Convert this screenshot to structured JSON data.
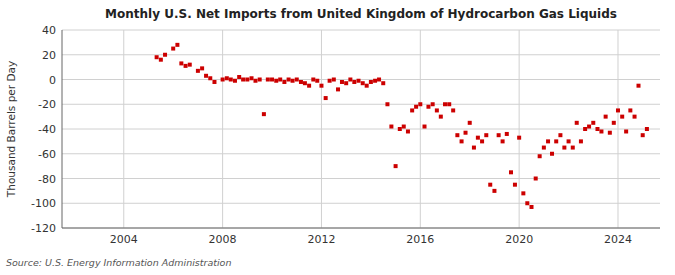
{
  "chart_data": {
    "type": "scatter",
    "title": "Monthly U.S. Net Imports from United Kingdom of Hydrocarbon Gas Liquids",
    "ylabel": "Thousand Barrels per Day",
    "source": "Source: U.S. Energy Information Administration",
    "x": [
      2005.33,
      2005.5,
      2005.67,
      2006,
      2006.17,
      2006.33,
      2006.5,
      2006.67,
      2007,
      2007.17,
      2007.33,
      2007.5,
      2007.67,
      2008,
      2008.17,
      2008.33,
      2008.5,
      2008.67,
      2008.83,
      2009,
      2009.17,
      2009.33,
      2009.5,
      2009.67,
      2009.83,
      2010,
      2010.17,
      2010.33,
      2010.5,
      2010.67,
      2010.83,
      2011,
      2011.17,
      2011.33,
      2011.5,
      2011.67,
      2011.83,
      2012,
      2012.17,
      2012.33,
      2012.5,
      2012.67,
      2012.83,
      2013,
      2013.17,
      2013.33,
      2013.5,
      2013.67,
      2013.83,
      2014,
      2014.17,
      2014.33,
      2014.5,
      2014.67,
      2014.83,
      2015,
      2015.17,
      2015.33,
      2015.5,
      2015.67,
      2015.83,
      2016,
      2016.17,
      2016.33,
      2016.5,
      2016.67,
      2016.83,
      2017,
      2017.17,
      2017.33,
      2017.5,
      2017.67,
      2017.83,
      2018,
      2018.17,
      2018.33,
      2018.5,
      2018.67,
      2018.83,
      2019,
      2019.17,
      2019.33,
      2019.5,
      2019.67,
      2019.83,
      2020,
      2020.17,
      2020.33,
      2020.5,
      2020.67,
      2020.83,
      2021,
      2021.17,
      2021.33,
      2021.5,
      2021.67,
      2021.83,
      2022,
      2022.17,
      2022.33,
      2022.5,
      2022.67,
      2022.83,
      2023,
      2023.17,
      2023.33,
      2023.5,
      2023.67,
      2023.83,
      2024,
      2024.17,
      2024.33,
      2024.5,
      2024.67,
      2024.83,
      2025,
      2025.17
    ],
    "values": [
      18,
      16,
      20,
      25,
      28,
      13,
      11,
      12,
      7,
      9,
      3,
      1,
      -2,
      0,
      1,
      0,
      -1,
      2,
      0,
      0,
      1,
      -1,
      0,
      -28,
      0,
      0,
      -1,
      0,
      -2,
      0,
      -1,
      0,
      -2,
      -3,
      -5,
      0,
      -1,
      -5,
      -15,
      -1,
      0,
      -8,
      -2,
      -3,
      0,
      -2,
      -1,
      -3,
      -5,
      -2,
      -1,
      0,
      -3,
      -20,
      -38,
      -70,
      -40,
      -38,
      -42,
      -25,
      -22,
      -20,
      -38,
      -22,
      -20,
      -25,
      -30,
      -20,
      -20,
      -25,
      -45,
      -50,
      -43,
      -35,
      -55,
      -47,
      -50,
      -45,
      -85,
      -90,
      -45,
      -50,
      -44,
      -75,
      -85,
      -47,
      -92,
      -100,
      -103,
      -80,
      -62,
      -55,
      -50,
      -60,
      -50,
      -45,
      -55,
      -50,
      -55,
      -35,
      -50,
      -40,
      -38,
      -35,
      -40,
      -42,
      -30,
      -43,
      -35,
      -25,
      -30,
      -42,
      -25,
      -30,
      -5,
      -45,
      -40
    ],
    "color": "#cc0000",
    "marker": "square",
    "xlim": [
      2001.5,
      2025.7
    ],
    "xticks": [
      2004,
      2008,
      2012,
      2016,
      2020,
      2024
    ],
    "ylim": [
      -120,
      40
    ],
    "yticks": [
      -120,
      -100,
      -80,
      -60,
      -40,
      -20,
      0,
      20,
      40
    ],
    "grid": true
  }
}
